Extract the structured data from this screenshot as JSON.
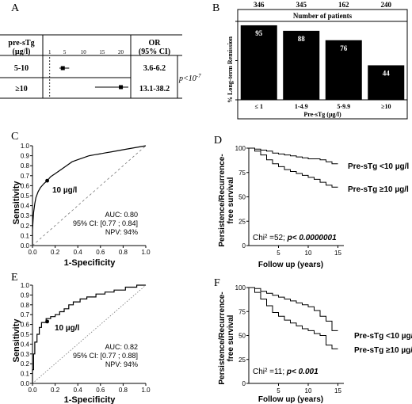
{
  "panels": {
    "A": {
      "letter": "A",
      "header_col1": [
        "pre-sTg",
        "(µg/l)"
      ],
      "header_col3": [
        "OR",
        "(95% CI)"
      ],
      "rows": [
        {
          "label": "5-10",
          "or": 4.5,
          "ci_low": 3.6,
          "ci_high": 6.2,
          "ci_text": "3.6-6.2"
        },
        {
          "label": "≥10",
          "or": 20,
          "ci_low": 13.1,
          "ci_high": 38.2,
          "ci_text": "13.1-38.2"
        }
      ],
      "axis_ticks": [
        1,
        5,
        10,
        15,
        20
      ],
      "axis_ticks_text": [
        "1",
        "5",
        "10",
        "15",
        "20"
      ],
      "p_prefix": "p<10",
      "p_exponent": "-7"
    },
    "B": {
      "letter": "B",
      "number_header": "Number of patients",
      "counts": [
        "346",
        "345",
        "162",
        "240"
      ],
      "ylabel": "% Long-term Remission",
      "xlabel": "Pre-sTg (µg/l)"
    },
    "C": {
      "letter": "C",
      "xlabel": "1-Specificity",
      "ylabel": "Sensitivity",
      "cutoff_label": "10 µg/l",
      "cutoff_point": [
        0.13,
        0.65
      ],
      "stats": [
        "AUC: 0.80",
        "95% CI: [0.77 ; 0.84]",
        "NPV: 94%"
      ]
    },
    "D": {
      "letter": "D",
      "xlabel": "Follow up (years)",
      "ylabel": [
        "Persistence/Recurrence-",
        "free survival"
      ],
      "series_labels": [
        "Pre-sTg <10 µg/l",
        "Pre-sTg ≥10 µg/l"
      ],
      "stat_prefix": "Chi² =52; ",
      "stat_p": "p< 0.0000001"
    },
    "E": {
      "letter": "E",
      "xlabel": "1-Specificity",
      "ylabel": "Sensitivity",
      "cutoff_label": "10 µg/l",
      "cutoff_point": [
        0.13,
        0.63
      ],
      "stats": [
        "AUC: 0.82",
        "95% CI: [0.77 ; 0.88]",
        "NPV: 94%"
      ]
    },
    "F": {
      "letter": "F",
      "xlabel": "Follow up (years)",
      "ylabel": [
        "Persistence/Recurrence-",
        "free survival"
      ],
      "series_labels": [
        "Pre-sTg <10 µg/l",
        "Pre-sTg ≥10 µg/l"
      ],
      "stat_prefix": "Chi² =11; ",
      "stat_p": "p< 0.001"
    }
  },
  "chart_data": [
    {
      "panel": "A",
      "type": "table",
      "xlim": [
        0,
        22
      ],
      "rows": [
        {
          "group": "5-10",
          "or": 4.5,
          "ci": [
            3.6,
            6.2
          ]
        },
        {
          "group": "≥10",
          "or": 20,
          "ci": [
            13.1,
            38.2
          ]
        }
      ],
      "p_value": "p<10-7"
    },
    {
      "panel": "B",
      "type": "bar",
      "categories": [
        "≤ 1",
        "1-4.9",
        "5-9.9",
        "≥10"
      ],
      "values": [
        95,
        88,
        76,
        44
      ],
      "n": [
        346,
        345,
        162,
        240
      ],
      "ylim": [
        0,
        100
      ],
      "yticks": [
        0,
        50,
        100
      ],
      "xlabel": "Pre-sTg (µg/l)",
      "ylabel": "% Long-term Remission",
      "bar_color": "#000000"
    },
    {
      "panel": "C",
      "type": "line",
      "xlim": [
        0,
        1
      ],
      "ylim": [
        0,
        1
      ],
      "xticks": [
        0.0,
        0.2,
        0.4,
        0.6,
        0.8,
        1.0
      ],
      "yticks": [
        0.0,
        0.1,
        0.2,
        0.3,
        0.4,
        0.5,
        0.6,
        0.7,
        0.8,
        0.9,
        1.0
      ],
      "xlabel": "1-Specificity",
      "ylabel": "Sensitivity",
      "series": [
        {
          "x": [
            0,
            0,
            0.005,
            0.01,
            0.02,
            0.03,
            0.05,
            0.07,
            0.1,
            0.13,
            0.16,
            0.2,
            0.25,
            0.3,
            0.35,
            0.4,
            0.45,
            0.5,
            0.55,
            0.6,
            0.65,
            0.7,
            0.8,
            0.9,
            1.0
          ],
          "y": [
            0,
            0.15,
            0.25,
            0.33,
            0.42,
            0.48,
            0.54,
            0.58,
            0.62,
            0.65,
            0.69,
            0.72,
            0.76,
            0.8,
            0.84,
            0.86,
            0.88,
            0.9,
            0.91,
            0.92,
            0.93,
            0.94,
            0.96,
            0.98,
            1.0
          ]
        },
        {
          "x": [
            0,
            1
          ],
          "y": [
            0,
            1
          ],
          "style": "dashed"
        }
      ],
      "annotations": [
        "10 µg/l",
        "AUC: 0.80",
        "95% CI: [0.77 ; 0.84]",
        "NPV: 94%"
      ]
    },
    {
      "panel": "D",
      "type": "line",
      "xlim": [
        0,
        16
      ],
      "ylim": [
        0,
        100
      ],
      "xticks": [
        5,
        10,
        15
      ],
      "yticks": [
        0,
        25,
        50,
        75,
        100
      ],
      "xlabel": "Follow up (years)",
      "ylabel": "Persistence/Recurrence-free survival",
      "series": [
        {
          "name": "Pre-sTg <10 µg/l",
          "x": [
            0,
            1,
            2,
            3,
            4,
            5,
            6,
            7,
            8,
            9,
            10,
            11,
            12,
            13,
            14,
            15
          ],
          "y": [
            100,
            99,
            98,
            97,
            95,
            94,
            93,
            92,
            91,
            90,
            89,
            89,
            88,
            86,
            84,
            84
          ]
        },
        {
          "name": "Pre-sTg ≥10 µg/l",
          "x": [
            0,
            1,
            2,
            3,
            4,
            5,
            6,
            7,
            8,
            9,
            10,
            11,
            12,
            13,
            14,
            15
          ],
          "y": [
            100,
            97,
            93,
            88,
            84,
            81,
            78,
            76,
            74,
            72,
            70,
            68,
            65,
            62,
            60,
            60
          ]
        }
      ],
      "annotations": [
        "Chi² =52; p< 0.0000001"
      ]
    },
    {
      "panel": "E",
      "type": "line",
      "xlim": [
        0,
        1
      ],
      "ylim": [
        0,
        1
      ],
      "xticks": [
        0.0,
        0.2,
        0.4,
        0.6,
        0.8,
        1.0
      ],
      "yticks": [
        0.0,
        0.1,
        0.2,
        0.3,
        0.4,
        0.5,
        0.6,
        0.7,
        0.8,
        0.9,
        1.0
      ],
      "xlabel": "1-Specificity",
      "ylabel": "Sensitivity",
      "series": [
        {
          "x": [
            0,
            0,
            0.01,
            0.01,
            0.02,
            0.02,
            0.04,
            0.04,
            0.06,
            0.06,
            0.08,
            0.08,
            0.12,
            0.12,
            0.16,
            0.16,
            0.2,
            0.2,
            0.24,
            0.24,
            0.28,
            0.28,
            0.32,
            0.32,
            0.36,
            0.36,
            0.42,
            0.42,
            0.48,
            0.48,
            0.56,
            0.56,
            0.64,
            0.64,
            0.72,
            0.72,
            0.82,
            0.82,
            0.92,
            0.92,
            1.0
          ],
          "y": [
            0,
            0.14,
            0.14,
            0.3,
            0.3,
            0.42,
            0.42,
            0.5,
            0.5,
            0.57,
            0.57,
            0.62,
            0.62,
            0.66,
            0.66,
            0.68,
            0.68,
            0.7,
            0.7,
            0.73,
            0.73,
            0.76,
            0.76,
            0.8,
            0.8,
            0.83,
            0.83,
            0.86,
            0.86,
            0.88,
            0.88,
            0.91,
            0.91,
            0.93,
            0.93,
            0.95,
            0.95,
            0.98,
            0.98,
            1.0,
            1.0
          ]
        },
        {
          "x": [
            0,
            1
          ],
          "y": [
            0,
            1
          ],
          "style": "dotted"
        }
      ],
      "annotations": [
        "10 µg/l",
        "AUC: 0.82",
        "95% CI: [0.77 ; 0.88]",
        "NPV: 94%"
      ]
    },
    {
      "panel": "F",
      "type": "line",
      "xlim": [
        0,
        16
      ],
      "ylim": [
        0,
        100
      ],
      "xticks": [
        5,
        10,
        15
      ],
      "yticks": [
        0,
        25,
        50,
        75,
        100
      ],
      "xlabel": "Follow up (years)",
      "ylabel": "Persistence/Recurrence-free survival",
      "series": [
        {
          "name": "Pre-sTg <10 µg/l",
          "x": [
            0,
            1,
            2,
            3,
            4,
            5,
            6,
            7,
            8,
            9,
            10,
            11,
            12,
            13,
            14,
            15
          ],
          "y": [
            100,
            99,
            96,
            94,
            92,
            90,
            88,
            86,
            84,
            82,
            80,
            76,
            70,
            65,
            55,
            55
          ]
        },
        {
          "name": "Pre-sTg ≥10 µg/l",
          "x": [
            0,
            1,
            2,
            3,
            4,
            5,
            6,
            7,
            8,
            9,
            10,
            11,
            12,
            13,
            14,
            15
          ],
          "y": [
            100,
            95,
            88,
            81,
            74,
            70,
            66,
            63,
            60,
            57,
            55,
            52,
            50,
            40,
            36,
            36
          ]
        }
      ],
      "annotations": [
        "Chi² =11; p< 0.001"
      ]
    }
  ]
}
